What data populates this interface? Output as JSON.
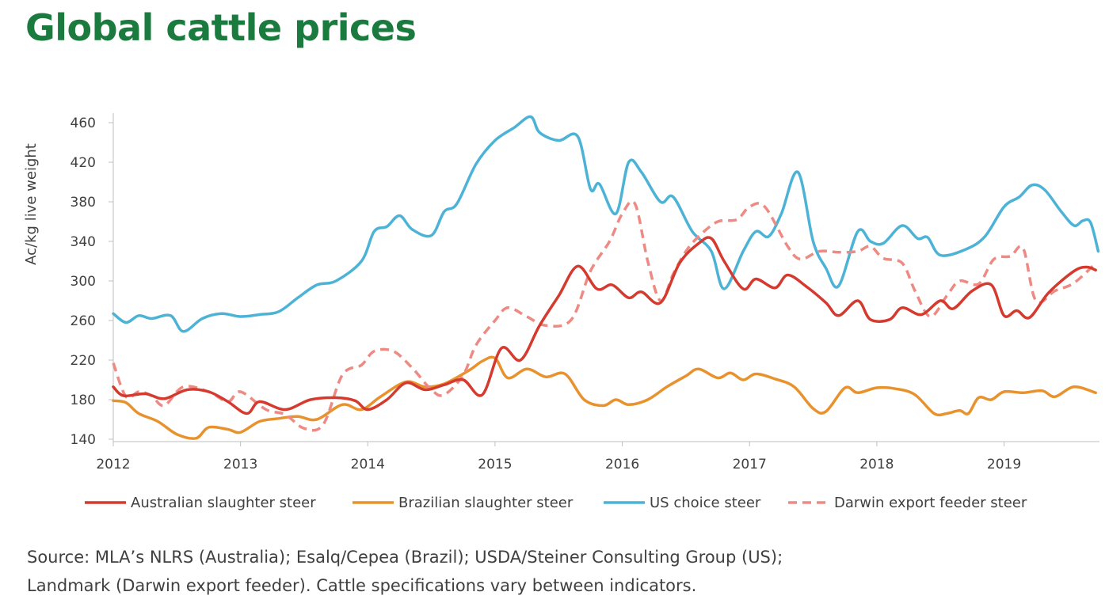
{
  "title": "Global cattle prices",
  "source_lines": [
    "Source: MLA’s NLRS (Australia); Esalq/Cepea  (Brazil); USDA/Steiner Consulting Group (US);",
    "Landmark (Darwin export feeder). Cattle specifications vary between indicators."
  ],
  "chart_data": {
    "type": "line",
    "title": "Global cattle prices",
    "ylabel": "Ac/kg live weight",
    "xlabel": "",
    "ylim": [
      140,
      460
    ],
    "xlim": [
      2012,
      2019.75
    ],
    "yticks": [
      140,
      180,
      220,
      260,
      300,
      340,
      380,
      420,
      460
    ],
    "xticks": [
      2012,
      2013,
      2014,
      2015,
      2016,
      2017,
      2018,
      2019
    ],
    "grid": false,
    "legend_position": "bottom",
    "series": [
      {
        "name": "Australian slaughter steer",
        "color": "#d53a2f",
        "dash": "solid",
        "points": [
          [
            2012,
            193
          ],
          [
            2012.08,
            184
          ],
          [
            2012.25,
            186
          ],
          [
            2012.4,
            181
          ],
          [
            2012.58,
            190
          ],
          [
            2012.75,
            188
          ],
          [
            2012.9,
            178
          ],
          [
            2013.05,
            166
          ],
          [
            2013.15,
            178
          ],
          [
            2013.35,
            170
          ],
          [
            2013.55,
            180
          ],
          [
            2013.75,
            182
          ],
          [
            2013.9,
            179
          ],
          [
            2014.0,
            170
          ],
          [
            2014.15,
            180
          ],
          [
            2014.3,
            197
          ],
          [
            2014.45,
            190
          ],
          [
            2014.6,
            195
          ],
          [
            2014.75,
            200
          ],
          [
            2014.9,
            185
          ],
          [
            2015.05,
            232
          ],
          [
            2015.2,
            220
          ],
          [
            2015.35,
            255
          ],
          [
            2015.5,
            285
          ],
          [
            2015.65,
            315
          ],
          [
            2015.8,
            292
          ],
          [
            2015.92,
            296
          ],
          [
            2016.05,
            283
          ],
          [
            2016.15,
            289
          ],
          [
            2016.3,
            278
          ],
          [
            2016.45,
            318
          ],
          [
            2016.6,
            338
          ],
          [
            2016.7,
            343
          ],
          [
            2016.8,
            320
          ],
          [
            2016.95,
            292
          ],
          [
            2017.05,
            302
          ],
          [
            2017.2,
            293
          ],
          [
            2017.3,
            306
          ],
          [
            2017.45,
            294
          ],
          [
            2017.6,
            278
          ],
          [
            2017.7,
            265
          ],
          [
            2017.85,
            280
          ],
          [
            2017.95,
            261
          ],
          [
            2018.1,
            261
          ],
          [
            2018.2,
            273
          ],
          [
            2018.35,
            266
          ],
          [
            2018.5,
            280
          ],
          [
            2018.6,
            272
          ],
          [
            2018.75,
            290
          ],
          [
            2018.9,
            296
          ],
          [
            2019.0,
            265
          ],
          [
            2019.1,
            270
          ],
          [
            2019.2,
            263
          ],
          [
            2019.35,
            288
          ],
          [
            2019.55,
            310
          ],
          [
            2019.65,
            314
          ],
          [
            2019.72,
            311
          ]
        ]
      },
      {
        "name": "Brazilian slaughter steer",
        "color": "#e8922e",
        "dash": "solid",
        "points": [
          [
            2012,
            179
          ],
          [
            2012.1,
            177
          ],
          [
            2012.2,
            166
          ],
          [
            2012.35,
            158
          ],
          [
            2012.5,
            145
          ],
          [
            2012.65,
            141
          ],
          [
            2012.75,
            152
          ],
          [
            2012.9,
            150
          ],
          [
            2013.0,
            147
          ],
          [
            2013.15,
            158
          ],
          [
            2013.3,
            161
          ],
          [
            2013.45,
            163
          ],
          [
            2013.6,
            160
          ],
          [
            2013.8,
            175
          ],
          [
            2013.95,
            170
          ],
          [
            2014.1,
            183
          ],
          [
            2014.3,
            198
          ],
          [
            2014.45,
            193
          ],
          [
            2014.6,
            196
          ],
          [
            2014.8,
            210
          ],
          [
            2014.9,
            219
          ],
          [
            2015.0,
            222
          ],
          [
            2015.1,
            202
          ],
          [
            2015.25,
            211
          ],
          [
            2015.4,
            203
          ],
          [
            2015.55,
            206
          ],
          [
            2015.7,
            180
          ],
          [
            2015.85,
            174
          ],
          [
            2015.95,
            180
          ],
          [
            2016.05,
            175
          ],
          [
            2016.2,
            180
          ],
          [
            2016.35,
            193
          ],
          [
            2016.5,
            204
          ],
          [
            2016.6,
            211
          ],
          [
            2016.75,
            202
          ],
          [
            2016.85,
            207
          ],
          [
            2016.95,
            200
          ],
          [
            2017.05,
            206
          ],
          [
            2017.2,
            201
          ],
          [
            2017.35,
            193
          ],
          [
            2017.5,
            171
          ],
          [
            2017.6,
            168
          ],
          [
            2017.75,
            192
          ],
          [
            2017.85,
            187
          ],
          [
            2018.0,
            192
          ],
          [
            2018.15,
            191
          ],
          [
            2018.3,
            185
          ],
          [
            2018.45,
            166
          ],
          [
            2018.55,
            166
          ],
          [
            2018.65,
            169
          ],
          [
            2018.72,
            166
          ],
          [
            2018.8,
            182
          ],
          [
            2018.9,
            180
          ],
          [
            2019.0,
            188
          ],
          [
            2019.15,
            187
          ],
          [
            2019.3,
            189
          ],
          [
            2019.4,
            183
          ],
          [
            2019.55,
            193
          ],
          [
            2019.72,
            187
          ]
        ]
      },
      {
        "name": "US choice steer",
        "color": "#4db3d6",
        "dash": "solid",
        "points": [
          [
            2012,
            267
          ],
          [
            2012.1,
            258
          ],
          [
            2012.2,
            265
          ],
          [
            2012.3,
            262
          ],
          [
            2012.45,
            265
          ],
          [
            2012.55,
            249
          ],
          [
            2012.7,
            262
          ],
          [
            2012.85,
            267
          ],
          [
            2013.0,
            264
          ],
          [
            2013.15,
            266
          ],
          [
            2013.3,
            269
          ],
          [
            2013.45,
            283
          ],
          [
            2013.6,
            296
          ],
          [
            2013.75,
            300
          ],
          [
            2013.95,
            320
          ],
          [
            2014.05,
            350
          ],
          [
            2014.15,
            355
          ],
          [
            2014.25,
            366
          ],
          [
            2014.35,
            352
          ],
          [
            2014.5,
            346
          ],
          [
            2014.6,
            370
          ],
          [
            2014.7,
            378
          ],
          [
            2014.85,
            418
          ],
          [
            2015.0,
            442
          ],
          [
            2015.15,
            455
          ],
          [
            2015.28,
            466
          ],
          [
            2015.35,
            450
          ],
          [
            2015.5,
            442
          ],
          [
            2015.65,
            446
          ],
          [
            2015.75,
            393
          ],
          [
            2015.82,
            398
          ],
          [
            2015.95,
            368
          ],
          [
            2016.05,
            420
          ],
          [
            2016.15,
            410
          ],
          [
            2016.3,
            380
          ],
          [
            2016.4,
            385
          ],
          [
            2016.55,
            350
          ],
          [
            2016.7,
            330
          ],
          [
            2016.8,
            292
          ],
          [
            2016.95,
            330
          ],
          [
            2017.05,
            350
          ],
          [
            2017.15,
            345
          ],
          [
            2017.25,
            368
          ],
          [
            2017.38,
            410
          ],
          [
            2017.5,
            340
          ],
          [
            2017.6,
            313
          ],
          [
            2017.7,
            295
          ],
          [
            2017.85,
            350
          ],
          [
            2017.95,
            340
          ],
          [
            2018.05,
            338
          ],
          [
            2018.2,
            356
          ],
          [
            2018.32,
            343
          ],
          [
            2018.4,
            344
          ],
          [
            2018.5,
            326
          ],
          [
            2018.7,
            332
          ],
          [
            2018.85,
            345
          ],
          [
            2019.0,
            375
          ],
          [
            2019.12,
            385
          ],
          [
            2019.22,
            397
          ],
          [
            2019.32,
            392
          ],
          [
            2019.45,
            370
          ],
          [
            2019.55,
            356
          ],
          [
            2019.62,
            361
          ],
          [
            2019.68,
            359
          ],
          [
            2019.74,
            330
          ]
        ]
      },
      {
        "name": "Darwin export feeder steer",
        "color": "#ee8a84",
        "dash": "dashed",
        "points": [
          [
            2012,
            217
          ],
          [
            2012.1,
            183
          ],
          [
            2012.2,
            188
          ],
          [
            2012.3,
            184
          ],
          [
            2012.4,
            174
          ],
          [
            2012.55,
            193
          ],
          [
            2012.75,
            188
          ],
          [
            2012.9,
            178
          ],
          [
            2013.0,
            188
          ],
          [
            2013.2,
            170
          ],
          [
            2013.35,
            165
          ],
          [
            2013.5,
            151
          ],
          [
            2013.65,
            155
          ],
          [
            2013.8,
            205
          ],
          [
            2013.95,
            215
          ],
          [
            2014.05,
            229
          ],
          [
            2014.2,
            229
          ],
          [
            2014.35,
            212
          ],
          [
            2014.5,
            190
          ],
          [
            2014.6,
            185
          ],
          [
            2014.75,
            205
          ],
          [
            2014.85,
            235
          ],
          [
            2015.0,
            260
          ],
          [
            2015.1,
            273
          ],
          [
            2015.25,
            264
          ],
          [
            2015.4,
            255
          ],
          [
            2015.6,
            261
          ],
          [
            2015.75,
            310
          ],
          [
            2015.9,
            340
          ],
          [
            2016.0,
            368
          ],
          [
            2016.1,
            378
          ],
          [
            2016.2,
            320
          ],
          [
            2016.3,
            280
          ],
          [
            2016.4,
            307
          ],
          [
            2016.5,
            330
          ],
          [
            2016.6,
            345
          ],
          [
            2016.75,
            360
          ],
          [
            2016.9,
            362
          ],
          [
            2017.0,
            375
          ],
          [
            2017.12,
            375
          ],
          [
            2017.3,
            335
          ],
          [
            2017.4,
            322
          ],
          [
            2017.55,
            330
          ],
          [
            2017.7,
            329
          ],
          [
            2017.85,
            330
          ],
          [
            2017.95,
            335
          ],
          [
            2018.05,
            323
          ],
          [
            2018.2,
            318
          ],
          [
            2018.3,
            290
          ],
          [
            2018.42,
            264
          ],
          [
            2018.55,
            285
          ],
          [
            2018.65,
            300
          ],
          [
            2018.8,
            297
          ],
          [
            2018.92,
            322
          ],
          [
            2019.05,
            325
          ],
          [
            2019.15,
            333
          ],
          [
            2019.25,
            280
          ],
          [
            2019.4,
            290
          ],
          [
            2019.55,
            298
          ],
          [
            2019.72,
            318
          ]
        ]
      }
    ]
  }
}
